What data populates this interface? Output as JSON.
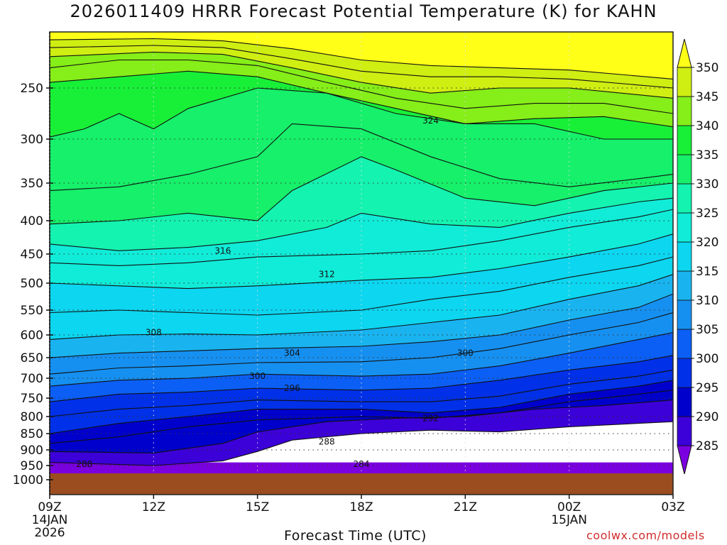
{
  "title": "2026011409 HRRR Forecast Potential Temperature (K) for KAHN",
  "credit": "coolwx.com/models",
  "chart_data": {
    "type": "heatmap",
    "title": "2026011409 HRRR Forecast Potential Temperature (K) for KAHN",
    "xlabel": "Forecast Time (UTC)",
    "ylabel": "",
    "x": [
      "09Z",
      "12Z",
      "15Z",
      "18Z",
      "21Z",
      "00Z",
      "03Z"
    ],
    "x_sublabels": [
      [
        "14JAN",
        "2026"
      ],
      [],
      [],
      [],
      [],
      [
        "15JAN"
      ],
      []
    ],
    "y_ticks": [
      250,
      300,
      350,
      400,
      450,
      500,
      550,
      600,
      650,
      700,
      750,
      800,
      850,
      900,
      950,
      1000
    ],
    "ylim": [
      1000,
      200
    ],
    "y_scale": "log",
    "colorbar": {
      "levels": [
        285,
        290,
        295,
        300,
        305,
        310,
        315,
        320,
        325,
        330,
        335,
        340,
        345,
        350
      ],
      "colors": [
        "#7a00e0",
        "#3c00d8",
        "#0000cc",
        "#0030e8",
        "#0b5ff5",
        "#1690f0",
        "#19b4f0",
        "#0cd6f0",
        "#10ecd8",
        "#14f3b0",
        "#16f06a",
        "#18f038",
        "#86ee18",
        "#cfee12",
        "#ffff18"
      ]
    },
    "contour_labels": [
      {
        "value": "324",
        "time": "20Z",
        "p": 282
      },
      {
        "value": "316",
        "time": "14Z",
        "p": 445
      },
      {
        "value": "312",
        "time": "17Z",
        "p": 485
      },
      {
        "value": "308",
        "time": "12Z",
        "p": 595
      },
      {
        "value": "304",
        "time": "16Z",
        "p": 640
      },
      {
        "value": "300",
        "time": "15Z",
        "p": 695
      },
      {
        "value": "300",
        "time": "21Z",
        "p": 640
      },
      {
        "value": "296",
        "time": "16Z",
        "p": 725
      },
      {
        "value": "292",
        "time": "20Z",
        "p": 805
      },
      {
        "value": "288",
        "time": "10Z",
        "p": 945
      },
      {
        "value": "288",
        "time": "17Z",
        "p": 875
      },
      {
        "value": "284",
        "time": "18Z",
        "p": 945
      }
    ],
    "series": [
      {
        "values": [
          [
            0,
            940
          ],
          [
            3,
            950
          ],
          [
            5,
            935
          ],
          [
            6,
            905
          ],
          [
            7,
            870
          ],
          [
            9,
            850
          ],
          [
            11,
            840
          ],
          [
            13,
            845
          ],
          [
            15,
            830
          ],
          [
            18,
            815
          ]
        ]
      },
      {
        "values": [
          [
            0,
            905
          ],
          [
            3,
            910
          ],
          [
            5,
            880
          ],
          [
            6,
            845
          ],
          [
            8,
            815
          ],
          [
            10,
            805
          ],
          [
            12,
            800
          ],
          [
            14,
            780
          ],
          [
            16,
            770
          ],
          [
            18,
            755
          ]
        ]
      },
      {
        "values": [
          [
            0,
            880
          ],
          [
            2,
            860
          ],
          [
            4,
            830
          ],
          [
            6,
            810
          ],
          [
            9,
            800
          ],
          [
            11,
            805
          ],
          [
            13,
            790
          ],
          [
            15,
            760
          ],
          [
            17,
            740
          ],
          [
            18,
            730
          ]
        ]
      },
      {
        "values": [
          [
            0,
            850
          ],
          [
            2,
            820
          ],
          [
            4,
            800
          ],
          [
            6,
            780
          ],
          [
            9,
            780
          ],
          [
            11,
            790
          ],
          [
            13,
            775
          ],
          [
            15,
            740
          ],
          [
            17,
            720
          ],
          [
            18,
            705
          ]
        ]
      },
      {
        "values": [
          [
            0,
            800
          ],
          [
            2,
            780
          ],
          [
            4,
            770
          ],
          [
            6,
            755
          ],
          [
            9,
            760
          ],
          [
            11,
            760
          ],
          [
            13,
            745
          ],
          [
            15,
            715
          ],
          [
            17,
            695
          ],
          [
            18,
            680
          ]
        ]
      },
      {
        "values": [
          [
            0,
            760
          ],
          [
            2,
            740
          ],
          [
            4,
            735
          ],
          [
            6,
            725
          ],
          [
            9,
            730
          ],
          [
            11,
            725
          ],
          [
            13,
            705
          ],
          [
            15,
            680
          ],
          [
            17,
            660
          ],
          [
            18,
            645
          ]
        ]
      },
      {
        "values": [
          [
            0,
            720
          ],
          [
            2,
            705
          ],
          [
            4,
            700
          ],
          [
            6,
            690
          ],
          [
            9,
            695
          ],
          [
            11,
            690
          ],
          [
            13,
            670
          ],
          [
            15,
            640
          ],
          [
            17,
            610
          ],
          [
            18,
            595
          ]
        ]
      },
      {
        "values": [
          [
            0,
            690
          ],
          [
            2,
            675
          ],
          [
            4,
            670
          ],
          [
            6,
            662
          ],
          [
            9,
            660
          ],
          [
            11,
            650
          ],
          [
            13,
            630
          ],
          [
            15,
            600
          ],
          [
            17,
            575
          ],
          [
            18,
            555
          ]
        ]
      },
      {
        "values": [
          [
            0,
            650
          ],
          [
            2,
            640
          ],
          [
            4,
            635
          ],
          [
            6,
            630
          ],
          [
            9,
            625
          ],
          [
            11,
            615
          ],
          [
            13,
            600
          ],
          [
            15,
            570
          ],
          [
            17,
            545
          ],
          [
            18,
            520
          ]
        ]
      },
      {
        "values": [
          [
            0,
            610
          ],
          [
            2,
            600
          ],
          [
            4,
            598
          ],
          [
            6,
            600
          ],
          [
            9,
            590
          ],
          [
            11,
            575
          ],
          [
            13,
            560
          ],
          [
            15,
            530
          ],
          [
            17,
            505
          ],
          [
            18,
            485
          ]
        ]
      },
      {
        "values": [
          [
            0,
            555
          ],
          [
            2,
            550
          ],
          [
            4,
            555
          ],
          [
            6,
            560
          ],
          [
            9,
            550
          ],
          [
            11,
            530
          ],
          [
            13,
            515
          ],
          [
            15,
            490
          ],
          [
            17,
            470
          ],
          [
            18,
            455
          ]
        ]
      },
      {
        "values": [
          [
            0,
            500
          ],
          [
            2,
            505
          ],
          [
            4,
            510
          ],
          [
            6,
            505
          ],
          [
            9,
            495
          ],
          [
            11,
            490
          ],
          [
            13,
            475
          ],
          [
            15,
            455
          ],
          [
            17,
            435
          ],
          [
            18,
            420
          ]
        ]
      },
      {
        "values": [
          [
            0,
            465
          ],
          [
            2,
            470
          ],
          [
            4,
            465
          ],
          [
            6,
            455
          ],
          [
            9,
            450
          ],
          [
            11,
            445
          ],
          [
            13,
            430
          ],
          [
            15,
            410
          ],
          [
            17,
            395
          ],
          [
            18,
            385
          ]
        ]
      },
      {
        "values": [
          [
            0,
            435
          ],
          [
            2,
            445
          ],
          [
            4,
            440
          ],
          [
            6,
            430
          ],
          [
            8,
            410
          ],
          [
            9,
            390
          ],
          [
            11,
            405
          ],
          [
            13,
            410
          ],
          [
            15,
            390
          ],
          [
            17,
            375
          ],
          [
            18,
            370
          ]
        ]
      },
      {
        "values": [
          [
            0,
            405
          ],
          [
            2,
            400
          ],
          [
            4,
            390
          ],
          [
            6,
            400
          ],
          [
            7,
            360
          ],
          [
            9,
            320
          ],
          [
            10,
            335
          ],
          [
            12,
            370
          ],
          [
            14,
            380
          ],
          [
            16,
            360
          ],
          [
            18,
            350
          ]
        ]
      },
      {
        "values": [
          [
            0,
            360
          ],
          [
            2,
            355
          ],
          [
            4,
            340
          ],
          [
            6,
            320
          ],
          [
            7,
            285
          ],
          [
            9,
            290
          ],
          [
            11,
            320
          ],
          [
            13,
            345
          ],
          [
            15,
            355
          ],
          [
            17,
            345
          ],
          [
            18,
            340
          ]
        ]
      },
      {
        "values": [
          [
            0,
            298
          ],
          [
            1,
            290
          ],
          [
            2,
            275
          ],
          [
            3,
            290
          ],
          [
            4,
            270
          ],
          [
            6,
            250
          ],
          [
            8,
            255
          ],
          [
            10,
            275
          ],
          [
            12,
            285
          ],
          [
            14,
            285
          ],
          [
            16,
            300
          ],
          [
            18,
            300
          ]
        ]
      },
      {
        "values": [
          [
            0,
            245
          ],
          [
            2,
            240
          ],
          [
            4,
            235
          ],
          [
            6,
            240
          ],
          [
            8,
            255
          ],
          [
            10,
            270
          ],
          [
            12,
            285
          ],
          [
            14,
            280
          ],
          [
            16,
            278
          ],
          [
            18,
            288
          ]
        ]
      },
      {
        "values": [
          [
            0,
            232
          ],
          [
            2,
            225
          ],
          [
            4,
            225
          ],
          [
            6,
            230
          ],
          [
            8,
            245
          ],
          [
            10,
            260
          ],
          [
            12,
            270
          ],
          [
            14,
            265
          ],
          [
            16,
            265
          ],
          [
            18,
            275
          ]
        ]
      },
      {
        "values": [
          [
            0,
            222
          ],
          [
            3,
            218
          ],
          [
            5,
            220
          ],
          [
            7,
            232
          ],
          [
            9,
            245
          ],
          [
            11,
            255
          ],
          [
            13,
            250
          ],
          [
            15,
            250
          ],
          [
            18,
            260
          ]
        ]
      },
      {
        "values": [
          [
            0,
            214
          ],
          [
            3,
            212
          ],
          [
            5,
            214
          ],
          [
            7,
            224
          ],
          [
            9,
            235
          ],
          [
            11,
            240
          ],
          [
            13,
            240
          ],
          [
            15,
            242
          ],
          [
            18,
            250
          ]
        ]
      },
      {
        "values": [
          [
            0,
            207
          ],
          [
            3,
            206
          ],
          [
            5,
            208
          ],
          [
            7,
            215
          ],
          [
            9,
            225
          ],
          [
            11,
            230
          ],
          [
            13,
            232
          ],
          [
            15,
            234
          ],
          [
            18,
            242
          ]
        ]
      }
    ]
  }
}
